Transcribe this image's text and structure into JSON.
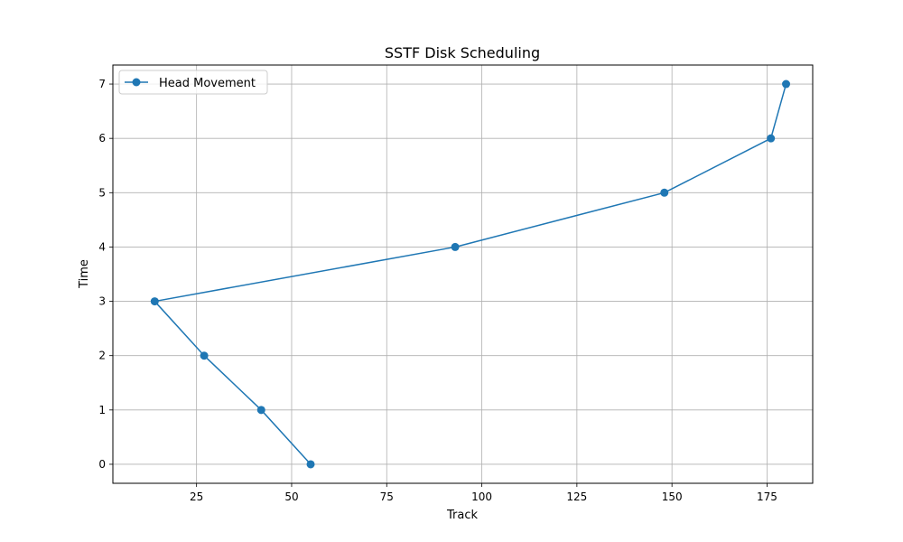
{
  "chart_data": {
    "type": "line",
    "title": "SSTF Disk Scheduling",
    "xlabel": "Track",
    "ylabel": "Time",
    "xlim": [
      3,
      187
    ],
    "ylim": [
      -0.35,
      7.35
    ],
    "xticks": [
      25,
      50,
      75,
      100,
      125,
      150,
      175
    ],
    "yticks": [
      0,
      1,
      2,
      3,
      4,
      5,
      6,
      7
    ],
    "grid": true,
    "legend_position": "top-left",
    "series": [
      {
        "name": "Head Movement",
        "color": "#1f77b4",
        "marker": "circle",
        "x": [
          55,
          42,
          27,
          14,
          93,
          148,
          176,
          180
        ],
        "y": [
          0,
          1,
          2,
          3,
          4,
          5,
          6,
          7
        ]
      }
    ]
  }
}
